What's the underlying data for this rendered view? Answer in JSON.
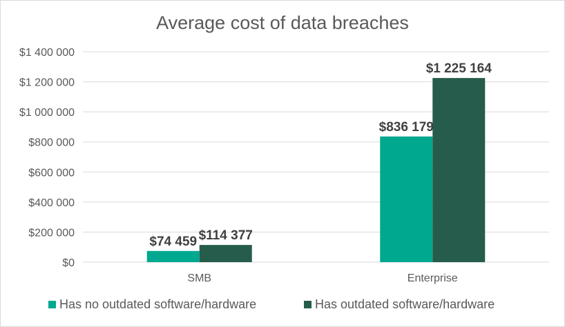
{
  "chart_data": {
    "type": "bar",
    "title": "Average cost of data breaches",
    "categories": [
      "SMB",
      "Enterprise"
    ],
    "series": [
      {
        "name": "Has no outdated software/hardware",
        "color": "#00A88F",
        "values": [
          74459,
          836179
        ],
        "labels": [
          "$74 459",
          "$836 179"
        ]
      },
      {
        "name": "Has outdated software/hardware",
        "color": "#265C4B",
        "values": [
          114377,
          1225164
        ],
        "labels": [
          "$114 377",
          "$1 225 164"
        ]
      }
    ],
    "ylim": [
      0,
      1400000
    ],
    "yticks": [
      0,
      200000,
      400000,
      600000,
      800000,
      1000000,
      1200000,
      1400000
    ],
    "ytick_labels": [
      "$0",
      "$200 000",
      "$400 000",
      "$600 000",
      "$800 000",
      "$1 000 000",
      "$1 200 000",
      "$1 400 000"
    ],
    "grid": true,
    "legend": "bottom"
  }
}
